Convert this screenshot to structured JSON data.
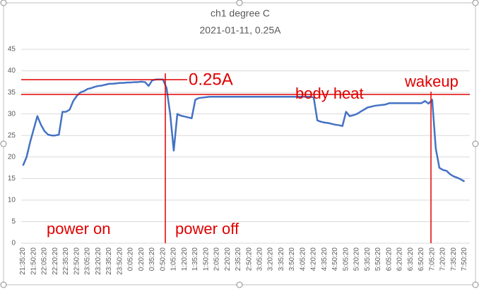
{
  "chart_data": {
    "type": "line",
    "title": "ch1 degree C",
    "subtitle": "2021-01-11, 0.25A",
    "categories": [
      "21:35:20",
      null,
      null,
      "21:50:20",
      null,
      null,
      "22:05:20",
      null,
      null,
      "22:20:20",
      null,
      null,
      "22:35:20",
      null,
      null,
      "22:50:20",
      null,
      null,
      "23:05:20",
      null,
      null,
      "23:20:20",
      null,
      null,
      "23:35:20",
      null,
      null,
      "23:50:20",
      null,
      null,
      "0:05:20",
      null,
      null,
      "0:20:20",
      null,
      null,
      "0:35:20",
      null,
      null,
      "0:50:20",
      null,
      null,
      "1:05:20",
      null,
      null,
      "1:20:20",
      null,
      null,
      "1:35:20",
      null,
      null,
      "1:50:20",
      null,
      null,
      "2:05:20",
      null,
      null,
      "2:20:20",
      null,
      null,
      "2:35:20",
      null,
      null,
      "2:50:20",
      null,
      null,
      "3:05:20",
      null,
      null,
      "3:20:20",
      null,
      null,
      "3:35:20",
      null,
      null,
      "3:50:20",
      null,
      null,
      "4:05:20",
      null,
      null,
      "4:20:20",
      null,
      null,
      "4:35:20",
      null,
      null,
      "4:50:20",
      null,
      null,
      "5:05:20",
      null,
      null,
      "5:20:20",
      null,
      null,
      "5:35:20",
      null,
      null,
      "5:50:20",
      null,
      null,
      "6:05:20",
      null,
      null,
      "6:20:20",
      null,
      null,
      "6:35:20",
      null,
      null,
      "6:50:20",
      null,
      null,
      "7:05:20",
      null,
      null,
      "7:20:20",
      null,
      null,
      "7:35:20",
      null,
      null,
      "7:50:20"
    ],
    "series": [
      {
        "name": "ch1",
        "color": "#4472c4",
        "values": [
          18,
          20,
          23.5,
          26.5,
          29.5,
          27.5,
          26,
          25.2,
          25,
          25,
          25.2,
          30.5,
          30.5,
          31,
          33,
          34.2,
          35,
          35.3,
          35.8,
          36,
          36.3,
          36.5,
          36.6,
          36.8,
          37,
          37,
          37.1,
          37.2,
          37.2,
          37.3,
          37.3,
          37.4,
          37.4,
          37.5,
          37.4,
          36.5,
          37.8,
          38,
          38,
          38,
          36,
          30,
          21.5,
          30,
          29.6,
          29.4,
          29.2,
          29,
          33.3,
          33.7,
          33.8,
          33.9,
          34,
          34,
          34,
          34,
          34,
          34,
          34,
          34,
          34,
          34,
          34,
          34,
          34,
          34,
          34,
          34,
          34,
          34,
          34,
          34,
          34,
          34,
          34,
          34,
          34,
          34,
          34,
          34,
          34,
          33.8,
          28.5,
          28.2,
          28,
          27.9,
          27.7,
          27.5,
          27.4,
          27.2,
          30.5,
          29.5,
          29.7,
          30,
          30.5,
          31,
          31.5,
          31.7,
          31.9,
          32,
          32.1,
          32.2,
          32.5,
          32.5,
          32.5,
          32.5,
          32.5,
          32.5,
          32.5,
          32.5,
          32.5,
          32.5,
          33,
          32.4,
          33.3,
          22,
          17.5,
          17,
          16.8,
          16,
          15.5,
          15.2,
          14.8,
          14.3
        ]
      }
    ],
    "ylim": [
      0,
      45
    ],
    "yticks": [
      0,
      5,
      10,
      15,
      20,
      25,
      30,
      35,
      40,
      45
    ],
    "grid": true,
    "annotations": [
      "0.25A",
      "power on",
      "power off",
      "body heat",
      "wakeup"
    ]
  }
}
